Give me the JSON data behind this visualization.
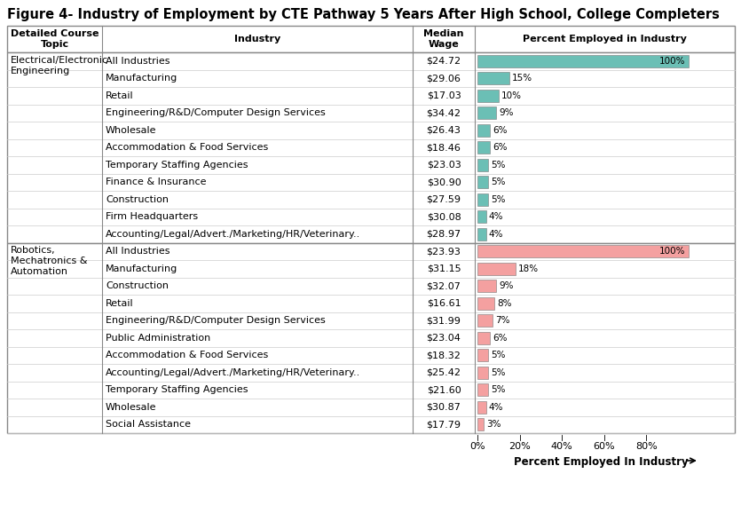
{
  "title": "Figure 4- Industry of Employment by CTE Pathway 5 Years After High School, College Completers",
  "col_headers": [
    "Detailed Course\nTopic",
    "Industry",
    "Median\nWage",
    "Percent Employed in Industry"
  ],
  "sections": [
    {
      "course_topic": "Electrical/Electronic\nEngineering",
      "color": "#6bbfb5",
      "rows": [
        {
          "industry": "All Industries",
          "wage": "$24.72",
          "pct": 100,
          "label": "100%"
        },
        {
          "industry": "Manufacturing",
          "wage": "$29.06",
          "pct": 15,
          "label": "15%"
        },
        {
          "industry": "Retail",
          "wage": "$17.03",
          "pct": 10,
          "label": "10%"
        },
        {
          "industry": "Engineering/R&D/Computer Design Services",
          "wage": "$34.42",
          "pct": 9,
          "label": "9%"
        },
        {
          "industry": "Wholesale",
          "wage": "$26.43",
          "pct": 6,
          "label": "6%"
        },
        {
          "industry": "Accommodation & Food Services",
          "wage": "$18.46",
          "pct": 6,
          "label": "6%"
        },
        {
          "industry": "Temporary Staffing Agencies",
          "wage": "$23.03",
          "pct": 5,
          "label": "5%"
        },
        {
          "industry": "Finance & Insurance",
          "wage": "$30.90",
          "pct": 5,
          "label": "5%"
        },
        {
          "industry": "Construction",
          "wage": "$27.59",
          "pct": 5,
          "label": "5%"
        },
        {
          "industry": "Firm Headquarters",
          "wage": "$30.08",
          "pct": 4,
          "label": "4%"
        },
        {
          "industry": "Accounting/Legal/Advert./Marketing/HR/Veterinary..",
          "wage": "$28.97",
          "pct": 4,
          "label": "4%"
        }
      ]
    },
    {
      "course_topic": "Robotics,\nMechatronics &\nAutomation",
      "color": "#f4a0a0",
      "rows": [
        {
          "industry": "All Industries",
          "wage": "$23.93",
          "pct": 100,
          "label": "100%"
        },
        {
          "industry": "Manufacturing",
          "wage": "$31.15",
          "pct": 18,
          "label": "18%"
        },
        {
          "industry": "Construction",
          "wage": "$32.07",
          "pct": 9,
          "label": "9%"
        },
        {
          "industry": "Retail",
          "wage": "$16.61",
          "pct": 8,
          "label": "8%"
        },
        {
          "industry": "Engineering/R&D/Computer Design Services",
          "wage": "$31.99",
          "pct": 7,
          "label": "7%"
        },
        {
          "industry": "Public Administration",
          "wage": "$23.04",
          "pct": 6,
          "label": "6%"
        },
        {
          "industry": "Accommodation & Food Services",
          "wage": "$18.32",
          "pct": 5,
          "label": "5%"
        },
        {
          "industry": "Accounting/Legal/Advert./Marketing/HR/Veterinary..",
          "wage": "$25.42",
          "pct": 5,
          "label": "5%"
        },
        {
          "industry": "Temporary Staffing Agencies",
          "wage": "$21.60",
          "pct": 5,
          "label": "5%"
        },
        {
          "industry": "Wholesale",
          "wage": "$30.87",
          "pct": 4,
          "label": "4%"
        },
        {
          "industry": "Social Assistance",
          "wage": "$17.79",
          "pct": 3,
          "label": "3%"
        }
      ]
    }
  ],
  "x_ticks": [
    "0%",
    "20%",
    "40%",
    "60%",
    "80%"
  ],
  "x_tick_vals": [
    0,
    20,
    40,
    60,
    80
  ],
  "x_axis_label": "Percent Employed In Industry",
  "font_size": 8.0,
  "title_font_size": 10.5,
  "border_color": "#888888",
  "grid_color": "#cccccc"
}
